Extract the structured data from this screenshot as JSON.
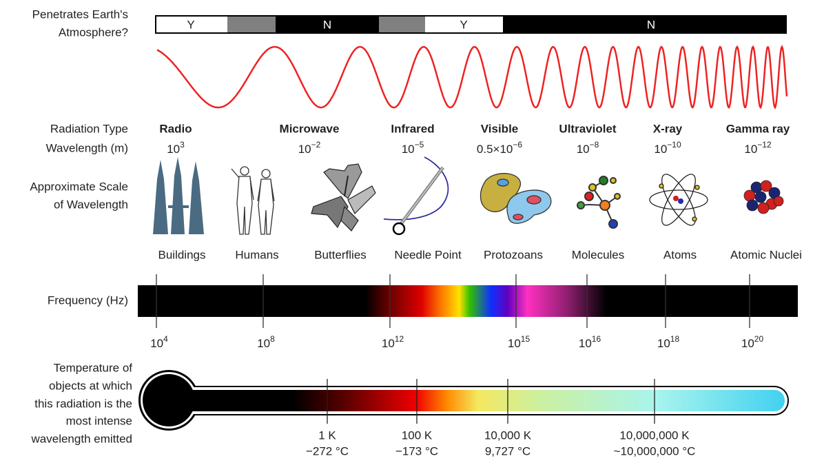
{
  "atmosphere": {
    "label": [
      "Penetrates Earth's",
      "Atmosphere?"
    ],
    "segments": [
      "Y",
      "N",
      "Y",
      "N"
    ]
  },
  "rows": {
    "radiation_type": "Radiation Type",
    "wavelength": "Wavelength (m)",
    "scale": [
      "Approximate Scale",
      "of Wavelength"
    ],
    "frequency": "Frequency (Hz)",
    "temperature": [
      "Temperature of",
      "objects at which",
      "this radiation is the",
      "most intense",
      "wavelength emitted"
    ]
  },
  "types": [
    {
      "name": "Radio",
      "wavelength": {
        "base": "10",
        "exponent": "3"
      }
    },
    {
      "name": "Microwave",
      "wavelength": {
        "base": "10",
        "exponent": "−2"
      }
    },
    {
      "name": "Infrared",
      "wavelength": {
        "base": "10",
        "exponent": "−5"
      }
    },
    {
      "name": "Visible",
      "wavelength": {
        "base": "0.5×10",
        "exponent": "−6"
      }
    },
    {
      "name": "Ultraviolet",
      "wavelength": {
        "base": "10",
        "exponent": "−8"
      }
    },
    {
      "name": "X-ray",
      "wavelength": {
        "base": "10",
        "exponent": "−10"
      }
    },
    {
      "name": "Gamma ray",
      "wavelength": {
        "base": "10",
        "exponent": "−12"
      }
    }
  ],
  "scales": [
    "Buildings",
    "Humans",
    "Butterflies",
    "Needle Point",
    "Protozoans",
    "Molecules",
    "Atoms",
    "Atomic Nuclei"
  ],
  "frequency_ticks": [
    {
      "base": "10",
      "exponent": "4"
    },
    {
      "base": "10",
      "exponent": "8"
    },
    {
      "base": "10",
      "exponent": "12"
    },
    {
      "base": "10",
      "exponent": "15"
    },
    {
      "base": "10",
      "exponent": "16"
    },
    {
      "base": "10",
      "exponent": "18"
    },
    {
      "base": "10",
      "exponent": "20"
    }
  ],
  "temperature_ticks": [
    {
      "kelvin": "1 K",
      "celsius": "−272 °C"
    },
    {
      "kelvin": "100 K",
      "celsius": "−173 °C"
    },
    {
      "kelvin": "10,000 K",
      "celsius": "9,727 °C"
    },
    {
      "kelvin": "10,000,000 K",
      "celsius": "~10,000,000 °C"
    }
  ]
}
